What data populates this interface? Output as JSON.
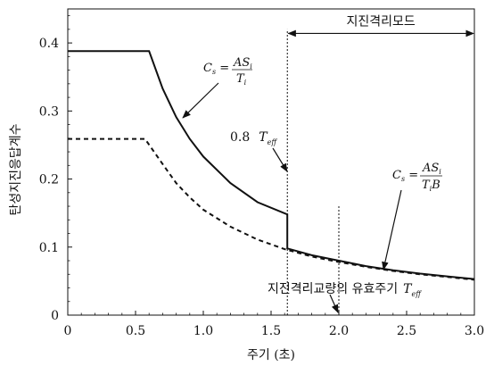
{
  "chart_data": {
    "type": "line",
    "title": "",
    "xlabel": "주기 (초)",
    "ylabel": "탄성지진응답계수",
    "xlim": [
      0,
      3.0
    ],
    "ylim": [
      0,
      0.45
    ],
    "xticks": [
      0,
      0.5,
      1.0,
      1.5,
      2.0,
      2.5,
      3.0
    ],
    "xtick_labels": [
      "0",
      "0.5",
      "1.0",
      "1.5",
      "2.0",
      "2.5",
      "3.0"
    ],
    "yticks": [
      0,
      0.1,
      0.2,
      0.3,
      0.4
    ],
    "ytick_labels": [
      "0",
      "0.1",
      "0.2",
      "0.3",
      "0.4"
    ],
    "grid": false,
    "series": [
      {
        "style": "solid",
        "points": [
          [
            0,
            0.388
          ],
          [
            0.6,
            0.388
          ],
          [
            0.7,
            0.333
          ],
          [
            0.8,
            0.291
          ],
          [
            0.9,
            0.259
          ],
          [
            1.0,
            0.233
          ],
          [
            1.2,
            0.194
          ],
          [
            1.4,
            0.166
          ],
          [
            1.62,
            0.148
          ],
          [
            1.62,
            0.098
          ],
          [
            1.8,
            0.088
          ],
          [
            2.0,
            0.08
          ],
          [
            2.2,
            0.072
          ],
          [
            2.4,
            0.066
          ],
          [
            2.6,
            0.061
          ],
          [
            2.8,
            0.057
          ],
          [
            3.0,
            0.053
          ]
        ]
      },
      {
        "style": "dashed",
        "points": [
          [
            0,
            0.259
          ],
          [
            0.57,
            0.259
          ],
          [
            0.7,
            0.222
          ],
          [
            0.8,
            0.194
          ],
          [
            0.9,
            0.173
          ],
          [
            1.0,
            0.155
          ],
          [
            1.2,
            0.13
          ],
          [
            1.4,
            0.111
          ],
          [
            1.6,
            0.097
          ],
          [
            1.8,
            0.086
          ],
          [
            2.0,
            0.078
          ],
          [
            2.2,
            0.071
          ],
          [
            2.4,
            0.065
          ],
          [
            2.6,
            0.06
          ],
          [
            2.8,
            0.056
          ],
          [
            3.0,
            0.052
          ]
        ]
      }
    ],
    "vertical_lines": [
      {
        "x": 1.62,
        "y_from": 0,
        "y_to": 0.42,
        "style": "dotted"
      },
      {
        "x": 2.0,
        "y_from": 0,
        "y_to": 0.16,
        "style": "dotted"
      }
    ],
    "annotations": {
      "isolation_mode_label": "지진격리모드",
      "isolation_mode_range": [
        1.62,
        3.0
      ],
      "isolation_mode_y": 0.414,
      "cs_formula_1": {
        "lhs": "C",
        "lhs_sub": "s",
        "num": "AS",
        "num_sub": "i",
        "den": "T",
        "den_sub": "i"
      },
      "cs_formula_2": {
        "lhs": "C",
        "lhs_sub": "s",
        "num": "AS",
        "num_sub": "i",
        "den": "T",
        "den_sub": "i",
        "den_tail": "B"
      },
      "point_8_teff": {
        "prefix": "0.8",
        "symbol": "T",
        "sub": "eff"
      },
      "effective_period": {
        "text": "지진격리교량의 유효주기",
        "symbol": "T",
        "sub": "eff"
      }
    }
  }
}
